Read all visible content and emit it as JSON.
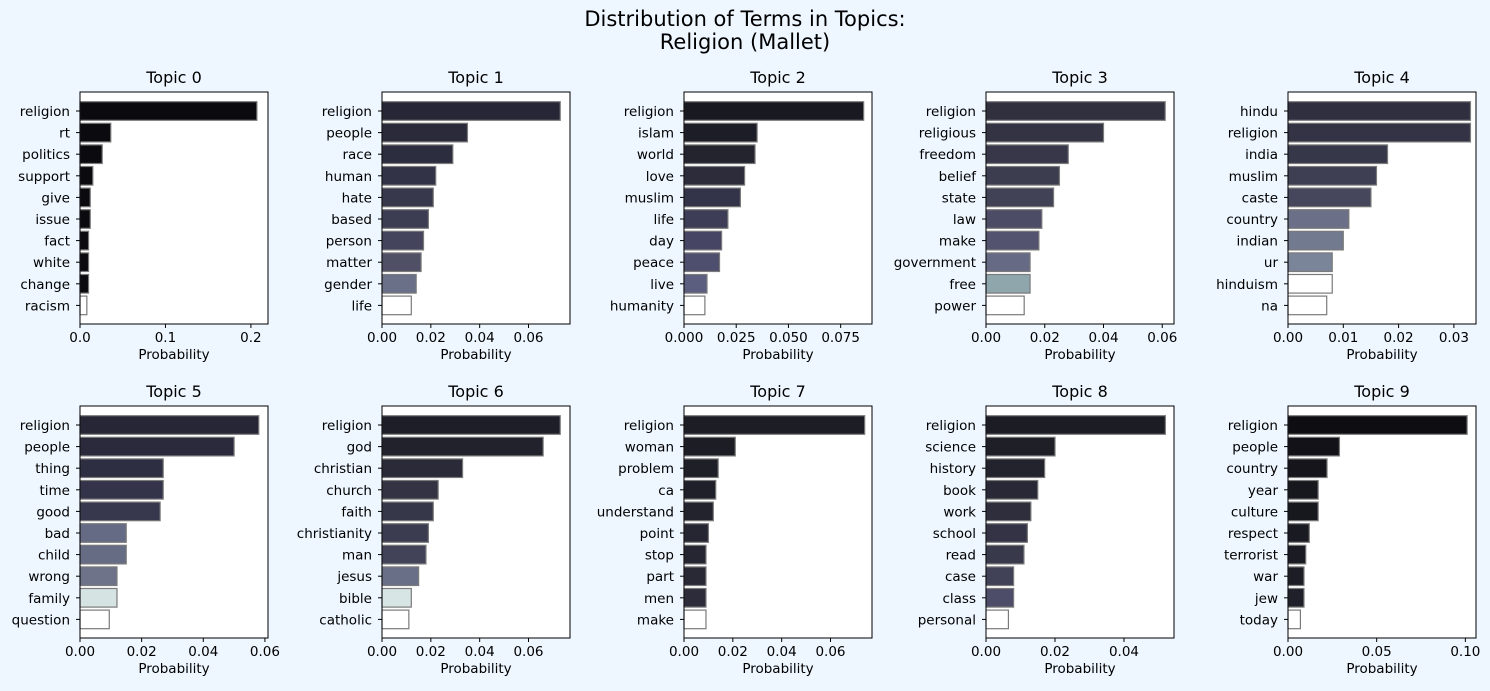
{
  "figure": {
    "title_line1": "Distribution of Terms in Topics:",
    "title_line2": "Religion (Mallet)"
  },
  "chart_data": [
    {
      "type": "bar",
      "orientation": "horizontal",
      "title": "Topic 0",
      "xlabel": "Probability",
      "xlim": [
        0,
        0.22
      ],
      "xticks": [
        0.0,
        0.1,
        0.2
      ],
      "xtick_labels": [
        "0.0",
        "0.1",
        "0.2"
      ],
      "categories": [
        "religion",
        "rt",
        "politics",
        "support",
        "give",
        "issue",
        "fact",
        "white",
        "change",
        "racism"
      ],
      "values": [
        0.207,
        0.036,
        0.026,
        0.015,
        0.012,
        0.012,
        0.01,
        0.01,
        0.01,
        0.008
      ],
      "colors": [
        "#0b0b0f",
        "#0b0b0f",
        "#0b0b0f",
        "#0b0b0f",
        "#0b0b0f",
        "#0b0b0f",
        "#0b0b0f",
        "#0b0b0f",
        "#0b0b0f",
        "#ffffff"
      ]
    },
    {
      "type": "bar",
      "orientation": "horizontal",
      "title": "Topic 1",
      "xlabel": "Probability",
      "xlim": [
        0,
        0.077
      ],
      "xticks": [
        0.0,
        0.02,
        0.04,
        0.06
      ],
      "xtick_labels": [
        "0.00",
        "0.02",
        "0.04",
        "0.06"
      ],
      "categories": [
        "religion",
        "people",
        "race",
        "human",
        "hate",
        "based",
        "person",
        "matter",
        "gender",
        "life"
      ],
      "values": [
        0.073,
        0.035,
        0.029,
        0.022,
        0.021,
        0.019,
        0.017,
        0.016,
        0.014,
        0.012
      ],
      "colors": [
        "#262636",
        "#2a2a3b",
        "#2d2d40",
        "#333347",
        "#38384c",
        "#3c3c52",
        "#44445c",
        "#4f4f66",
        "#6a7088",
        "#ffffff"
      ]
    },
    {
      "type": "bar",
      "orientation": "horizontal",
      "title": "Topic 2",
      "xlabel": "Probability",
      "xlim": [
        0,
        0.09
      ],
      "xticks": [
        0.0,
        0.025,
        0.05,
        0.075
      ],
      "xtick_labels": [
        "0.000",
        "0.025",
        "0.050",
        "0.075"
      ],
      "categories": [
        "religion",
        "islam",
        "world",
        "love",
        "muslim",
        "life",
        "day",
        "peace",
        "live",
        "humanity"
      ],
      "values": [
        0.086,
        0.035,
        0.034,
        0.029,
        0.027,
        0.021,
        0.018,
        0.017,
        0.011,
        0.01
      ],
      "colors": [
        "#191921",
        "#1d1d27",
        "#24242f",
        "#2c2c3b",
        "#33334a",
        "#3d3d57",
        "#464664",
        "#4e4e6e",
        "#5c5e80",
        "#ffffff"
      ]
    },
    {
      "type": "bar",
      "orientation": "horizontal",
      "title": "Topic 3",
      "xlabel": "Probability",
      "xlim": [
        0,
        0.064
      ],
      "xticks": [
        0.0,
        0.02,
        0.04,
        0.06
      ],
      "xtick_labels": [
        "0.00",
        "0.02",
        "0.04",
        "0.06"
      ],
      "categories": [
        "religion",
        "religious",
        "freedom",
        "belief",
        "state",
        "law",
        "make",
        "government",
        "free",
        "power"
      ],
      "values": [
        0.061,
        0.04,
        0.028,
        0.025,
        0.023,
        0.019,
        0.018,
        0.015,
        0.015,
        0.013
      ],
      "colors": [
        "#30303e",
        "#333344",
        "#373749",
        "#3d3d50",
        "#424257",
        "#4c4c66",
        "#535370",
        "#666a85",
        "#8fa6ad",
        "#ffffff"
      ]
    },
    {
      "type": "bar",
      "orientation": "horizontal",
      "title": "Topic 4",
      "xlabel": "Probability",
      "xlim": [
        0,
        0.034
      ],
      "xticks": [
        0.0,
        0.01,
        0.02,
        0.03
      ],
      "xtick_labels": [
        "0.00",
        "0.01",
        "0.02",
        "0.03"
      ],
      "categories": [
        "hindu",
        "religion",
        "india",
        "muslim",
        "caste",
        "country",
        "indian",
        "ur",
        "hinduism",
        "na"
      ],
      "values": [
        0.033,
        0.033,
        0.018,
        0.016,
        0.015,
        0.011,
        0.01,
        0.008,
        0.008,
        0.007
      ],
      "colors": [
        "#2f2f40",
        "#333345",
        "#37374a",
        "#3f3f54",
        "#46465c",
        "#6b7088",
        "#727a8f",
        "#7a8599",
        "#ffffff",
        "#ffffff"
      ]
    },
    {
      "type": "bar",
      "orientation": "horizontal",
      "title": "Topic 5",
      "xlabel": "Probability",
      "xlim": [
        0,
        0.061
      ],
      "xticks": [
        0.0,
        0.02,
        0.04,
        0.06
      ],
      "xtick_labels": [
        "0.00",
        "0.02",
        "0.04",
        "0.06"
      ],
      "categories": [
        "religion",
        "people",
        "thing",
        "time",
        "good",
        "bad",
        "child",
        "wrong",
        "family",
        "question"
      ],
      "values": [
        0.058,
        0.05,
        0.027,
        0.027,
        0.026,
        0.015,
        0.015,
        0.012,
        0.012,
        0.0095
      ],
      "colors": [
        "#262636",
        "#2a2a3c",
        "#2e2e42",
        "#333349",
        "#37374d",
        "#666b85",
        "#676c85",
        "#6f738a",
        "#d6e3e3",
        "#ffffff"
      ]
    },
    {
      "type": "bar",
      "orientation": "horizontal",
      "title": "Topic 6",
      "xlabel": "Probability",
      "xlim": [
        0,
        0.077
      ],
      "xticks": [
        0.0,
        0.02,
        0.04,
        0.06
      ],
      "xtick_labels": [
        "0.00",
        "0.02",
        "0.04",
        "0.06"
      ],
      "categories": [
        "religion",
        "god",
        "christian",
        "church",
        "faith",
        "christianity",
        "man",
        "jesus",
        "bible",
        "catholic"
      ],
      "values": [
        0.073,
        0.066,
        0.033,
        0.023,
        0.021,
        0.019,
        0.018,
        0.015,
        0.012,
        0.011
      ],
      "colors": [
        "#1e1e28",
        "#22222d",
        "#2a2a38",
        "#333343",
        "#37374a",
        "#3c3c50",
        "#424258",
        "#6a6f88",
        "#d8e5e5",
        "#ffffff"
      ]
    },
    {
      "type": "bar",
      "orientation": "horizontal",
      "title": "Topic 7",
      "xlabel": "Probability",
      "xlim": [
        0,
        0.077
      ],
      "xticks": [
        0.0,
        0.02,
        0.04,
        0.06
      ],
      "xtick_labels": [
        "0.00",
        "0.02",
        "0.04",
        "0.06"
      ],
      "categories": [
        "religion",
        "woman",
        "problem",
        "ca",
        "understand",
        "point",
        "stop",
        "part",
        "men",
        "make"
      ],
      "values": [
        0.074,
        0.021,
        0.014,
        0.013,
        0.012,
        0.01,
        0.009,
        0.009,
        0.009,
        0.009
      ],
      "colors": [
        "#1d1d25",
        "#1d1d25",
        "#1f1f28",
        "#20202a",
        "#23232e",
        "#262632",
        "#262632",
        "#292936",
        "#2c2c3a",
        "#ffffff"
      ]
    },
    {
      "type": "bar",
      "orientation": "horizontal",
      "title": "Topic 8",
      "xlabel": "Probability",
      "xlim": [
        0,
        0.0545
      ],
      "xticks": [
        0.0,
        0.02,
        0.04
      ],
      "xtick_labels": [
        "0.00",
        "0.02",
        "0.04"
      ],
      "categories": [
        "religion",
        "science",
        "history",
        "book",
        "work",
        "school",
        "read",
        "case",
        "class",
        "personal"
      ],
      "values": [
        0.052,
        0.02,
        0.017,
        0.015,
        0.013,
        0.012,
        0.011,
        0.008,
        0.008,
        0.0065
      ],
      "colors": [
        "#1c1c24",
        "#1f1f28",
        "#23232e",
        "#282836",
        "#2e2e3d",
        "#333345",
        "#39394c",
        "#414158",
        "#4d4d69",
        "#ffffff"
      ]
    },
    {
      "type": "bar",
      "orientation": "horizontal",
      "title": "Topic 9",
      "xlabel": "Probability",
      "xlim": [
        0,
        0.106
      ],
      "xticks": [
        0.0,
        0.05,
        0.1
      ],
      "xtick_labels": [
        "0.00",
        "0.05",
        "0.10"
      ],
      "categories": [
        "religion",
        "people",
        "country",
        "year",
        "culture",
        "respect",
        "terrorist",
        "war",
        "jew",
        "today"
      ],
      "values": [
        0.101,
        0.029,
        0.022,
        0.017,
        0.017,
        0.012,
        0.01,
        0.009,
        0.009,
        0.007
      ],
      "colors": [
        "#0e0e12",
        "#121218",
        "#15151b",
        "#17171e",
        "#17171e",
        "#1a1a22",
        "#1b1b23",
        "#1d1d26",
        "#20202a",
        "#ffffff"
      ]
    }
  ]
}
